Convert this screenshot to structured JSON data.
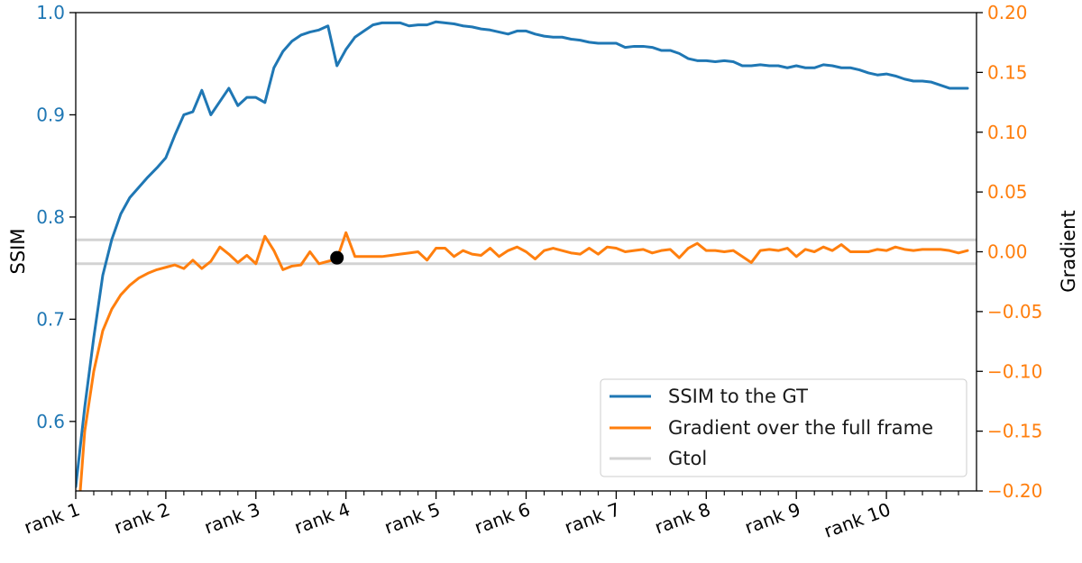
{
  "chart_data": {
    "type": "line",
    "left_axis": {
      "label": "SSIM",
      "range": [
        0.532,
        1.0
      ],
      "ticks": [
        0.6,
        0.7,
        0.8,
        0.9,
        1.0
      ],
      "tick_labels": [
        "0.6",
        "0.7",
        "0.8",
        "0.9",
        "1.0"
      ],
      "color": "#1f77b4"
    },
    "right_axis": {
      "label": "Gradient",
      "range": [
        -0.2,
        0.2
      ],
      "ticks": [
        -0.2,
        -0.15,
        -0.1,
        -0.05,
        0.0,
        0.05,
        0.1,
        0.15,
        0.2
      ],
      "tick_labels": [
        "−0.20",
        "−0.15",
        "−0.10",
        "−0.05",
        "0.00",
        "0.05",
        "0.10",
        "0.15",
        "0.20"
      ],
      "color": "#ff7f0e"
    },
    "x_axis": {
      "range": [
        0,
        100
      ],
      "major_ticks": [
        0,
        10,
        20,
        30,
        40,
        50,
        60,
        70,
        80,
        90
      ],
      "major_labels": [
        "rank 1",
        "rank 2",
        "rank 3",
        "rank 4",
        "rank 5",
        "rank 6",
        "rank 7",
        "rank 8",
        "rank 9",
        "rank 10"
      ],
      "minor_ticks": [
        2,
        4,
        6,
        8,
        12,
        14,
        16,
        18,
        22,
        24,
        26,
        28,
        32,
        34,
        36,
        38,
        42,
        44,
        46,
        48,
        52,
        54,
        56,
        58,
        62,
        64,
        66,
        68,
        72,
        74,
        76,
        78,
        82,
        84,
        86,
        88,
        92,
        94,
        96,
        98
      ]
    },
    "series": [
      {
        "name": "SSIM to the GT",
        "axis": "left",
        "color": "#1f77b4",
        "x": [
          0,
          1,
          2,
          3,
          4,
          5,
          6,
          7,
          8,
          9,
          10,
          11,
          12,
          13,
          14,
          15,
          16,
          17,
          18,
          19,
          20,
          21,
          22,
          23,
          24,
          25,
          26,
          27,
          28,
          29,
          30,
          31,
          32,
          33,
          34,
          35,
          36,
          37,
          38,
          39,
          40,
          41,
          42,
          43,
          44,
          45,
          46,
          47,
          48,
          49,
          50,
          51,
          52,
          53,
          54,
          55,
          56,
          57,
          58,
          59,
          60,
          61,
          62,
          63,
          64,
          65,
          66,
          67,
          68,
          69,
          70,
          71,
          72,
          73,
          74,
          75,
          76,
          77,
          78,
          79,
          80,
          81,
          82,
          83,
          84,
          85,
          86,
          87,
          88,
          89,
          90,
          91,
          92,
          93,
          94,
          95,
          96,
          97,
          98,
          99
        ],
        "y": [
          0.536,
          0.614,
          0.682,
          0.743,
          0.778,
          0.803,
          0.819,
          0.829,
          0.839,
          0.848,
          0.858,
          0.88,
          0.9,
          0.903,
          0.924,
          0.9,
          0.913,
          0.926,
          0.909,
          0.917,
          0.917,
          0.912,
          0.946,
          0.962,
          0.972,
          0.978,
          0.981,
          0.983,
          0.987,
          0.948,
          0.964,
          0.976,
          0.982,
          0.988,
          0.99,
          0.99,
          0.99,
          0.987,
          0.988,
          0.988,
          0.991,
          0.99,
          0.989,
          0.987,
          0.986,
          0.984,
          0.983,
          0.981,
          0.979,
          0.982,
          0.982,
          0.979,
          0.977,
          0.976,
          0.976,
          0.974,
          0.973,
          0.971,
          0.97,
          0.97,
          0.97,
          0.966,
          0.967,
          0.967,
          0.966,
          0.963,
          0.963,
          0.96,
          0.955,
          0.953,
          0.953,
          0.952,
          0.953,
          0.952,
          0.948,
          0.948,
          0.949,
          0.948,
          0.948,
          0.946,
          0.948,
          0.946,
          0.946,
          0.949,
          0.948,
          0.946,
          0.946,
          0.944,
          0.941,
          0.939,
          0.94,
          0.938,
          0.935,
          0.933,
          0.933,
          0.932,
          0.929,
          0.926,
          0.926,
          0.926
        ]
      },
      {
        "name": "Gradient over the full frame",
        "axis": "right",
        "color": "#ff7f0e",
        "x": [
          0.5,
          1,
          2,
          3,
          4,
          5,
          6,
          7,
          8,
          9,
          10,
          11,
          12,
          13,
          14,
          15,
          16,
          17,
          18,
          19,
          20,
          21,
          22,
          23,
          24,
          25,
          26,
          27,
          28,
          29,
          30,
          31,
          32,
          33,
          34,
          35,
          36,
          37,
          38,
          39,
          40,
          41,
          42,
          43,
          44,
          45,
          46,
          47,
          48,
          49,
          50,
          51,
          52,
          53,
          54,
          55,
          56,
          57,
          58,
          59,
          60,
          61,
          62,
          63,
          64,
          65,
          66,
          67,
          68,
          69,
          70,
          71,
          72,
          73,
          74,
          75,
          76,
          77,
          78,
          79,
          80,
          81,
          82,
          83,
          84,
          85,
          86,
          87,
          88,
          89,
          90,
          91,
          92,
          93,
          94,
          95,
          96,
          97,
          98,
          99
        ],
        "y": [
          -0.2,
          -0.15,
          -0.1,
          -0.066,
          -0.048,
          -0.036,
          -0.028,
          -0.022,
          -0.018,
          -0.015,
          -0.013,
          -0.011,
          -0.014,
          -0.007,
          -0.014,
          -0.008,
          0.004,
          -0.002,
          -0.009,
          -0.003,
          -0.01,
          0.013,
          0.001,
          -0.015,
          -0.012,
          -0.011,
          0.0,
          -0.01,
          -0.008,
          -0.006,
          0.016,
          -0.004,
          -0.004,
          -0.004,
          -0.004,
          -0.003,
          -0.002,
          -0.001,
          0.0,
          -0.007,
          0.003,
          0.003,
          -0.004,
          0.001,
          -0.002,
          -0.003,
          0.003,
          -0.004,
          0.001,
          0.004,
          0.0,
          -0.006,
          0.001,
          0.003,
          0.001,
          -0.001,
          -0.002,
          0.003,
          -0.002,
          0.004,
          0.003,
          0.0,
          0.001,
          0.002,
          -0.001,
          0.001,
          0.002,
          -0.005,
          0.003,
          0.007,
          0.001,
          0.001,
          0.0,
          0.001,
          -0.004,
          -0.009,
          0.001,
          0.002,
          0.001,
          0.003,
          -0.004,
          0.002,
          0.0,
          0.004,
          0.001,
          0.006,
          0.0,
          0.0,
          0.0,
          0.002,
          0.001,
          0.004,
          0.002,
          0.001,
          0.002,
          0.002,
          0.002,
          0.001,
          -0.001,
          0.001
        ]
      },
      {
        "name": "Gtol",
        "axis": "right",
        "color": "#d3d3d3",
        "type": "hline",
        "values": [
          0.01,
          -0.01
        ]
      }
    ],
    "marker": {
      "axis": "right",
      "x": 29,
      "y": -0.005,
      "color": "#000000"
    },
    "legend": {
      "placement": "lower-right",
      "entries": [
        "SSIM to the GT",
        "Gradient over the full frame",
        "Gtol"
      ]
    }
  }
}
